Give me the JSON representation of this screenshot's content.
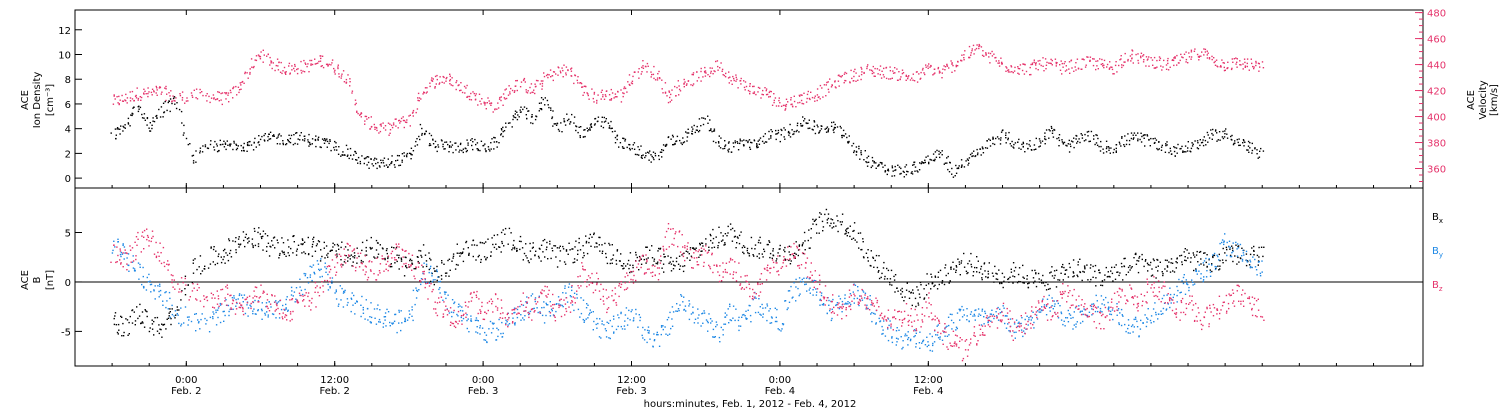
{
  "chart_data": [
    {
      "type": "scatter",
      "panel": "top",
      "ylabel_left": [
        "ACE",
        "Ion Density",
        "[cm⁻³]"
      ],
      "ylabel_right": [
        "ACE",
        "Velocity",
        "[km/s]"
      ],
      "yticks_left": [
        "0",
        "2",
        "4",
        "6",
        "8",
        "10",
        "12"
      ],
      "yticks_right": [
        "360",
        "380",
        "400",
        "420",
        "440",
        "460",
        "480"
      ],
      "ylim_left": [
        -0.8,
        13.6
      ],
      "ylim_right": [
        345,
        482
      ],
      "right_axis_color": "#e5336b",
      "series": [
        {
          "name": "Ion Density",
          "axis": "left",
          "color": "#000000",
          "x": [
            -6,
            -5,
            -4,
            -3,
            -2,
            -1,
            0.5,
            2,
            3,
            4,
            5,
            6,
            7,
            8,
            9,
            10,
            11,
            12,
            13,
            14,
            15,
            16,
            17,
            18,
            19,
            20,
            21,
            22,
            23,
            24,
            25,
            26,
            27,
            28,
            29,
            30,
            31,
            32,
            33,
            34,
            35,
            36,
            37,
            38,
            39,
            40,
            41,
            42,
            43,
            44,
            45,
            46,
            47,
            48,
            49,
            50,
            51,
            52,
            53,
            54,
            55,
            56,
            57,
            58,
            59,
            60,
            61,
            62,
            63,
            64,
            65,
            66,
            67,
            68,
            69,
            70,
            71,
            72,
            73,
            74,
            75,
            76,
            77,
            78,
            79,
            80,
            81,
            82,
            83,
            84,
            85,
            86,
            87
          ],
          "y": [
            3.5,
            4.2,
            5.8,
            4.2,
            5.5,
            6.4,
            1.5,
            2.7,
            2.6,
            2.8,
            2.7,
            3.1,
            3.3,
            3.2,
            3.3,
            3.1,
            2.9,
            2.6,
            2.1,
            1.6,
            1.2,
            1.2,
            1.5,
            1.7,
            4.0,
            2.7,
            2.6,
            2.5,
            2.8,
            2.5,
            2.9,
            4.5,
            5.5,
            4.8,
            6.5,
            4.0,
            5.0,
            3.5,
            4.5,
            4.5,
            3.0,
            2.5,
            2.0,
            1.7,
            3.0,
            3.2,
            4.0,
            4.7,
            3.0,
            2.5,
            3.0,
            2.6,
            3.5,
            3.5,
            4.0,
            4.7,
            4.0,
            4.2,
            3.8,
            2.5,
            1.5,
            1.2,
            0.7,
            0.6,
            1.0,
            1.5,
            2.0,
            0.5,
            1.5,
            2.0,
            3.0,
            3.5,
            2.8,
            2.6,
            3.0,
            4.0,
            2.5,
            3.0,
            3.5,
            2.6,
            2.5,
            3.2,
            3.3,
            3.0,
            2.6,
            2.3,
            2.5,
            3.0,
            3.5,
            3.6,
            3.0,
            2.5,
            1.8
          ]
        },
        {
          "name": "Velocity",
          "axis": "right",
          "color": "#e5336b",
          "x": [
            -6,
            -5,
            -4,
            -3,
            -2,
            -1,
            0.5,
            2,
            3,
            4,
            5,
            6,
            7,
            8,
            9,
            10,
            11,
            12,
            13,
            14,
            15,
            16,
            17,
            18,
            19,
            20,
            21,
            22,
            23,
            24,
            25,
            26,
            27,
            28,
            29,
            30,
            31,
            32,
            33,
            34,
            35,
            36,
            37,
            38,
            39,
            40,
            41,
            42,
            43,
            44,
            45,
            46,
            47,
            48,
            49,
            50,
            51,
            52,
            53,
            54,
            55,
            56,
            57,
            58,
            59,
            60,
            61,
            62,
            63,
            64,
            65,
            66,
            67,
            68,
            69,
            70,
            71,
            72,
            73,
            74,
            75,
            76,
            77,
            78,
            79,
            80,
            81,
            82,
            83,
            84,
            85,
            86,
            87
          ],
          "y": [
            412,
            414,
            418,
            418,
            420,
            414,
            417,
            416,
            414,
            420,
            435,
            449,
            441,
            437,
            438,
            440,
            444,
            438,
            430,
            400,
            394,
            390,
            395,
            398,
            420,
            428,
            430,
            424,
            418,
            412,
            408,
            420,
            426,
            420,
            430,
            435,
            436,
            422,
            415,
            418,
            416,
            430,
            440,
            432,
            415,
            425,
            430,
            434,
            440,
            430,
            425,
            420,
            418,
            410,
            412,
            415,
            418,
            424,
            430,
            432,
            436,
            435,
            434,
            432,
            430,
            438,
            434,
            440,
            448,
            453,
            446,
            440,
            438,
            437,
            441,
            440,
            438,
            440,
            442,
            440,
            438,
            448,
            445,
            443,
            440,
            442,
            446,
            450,
            444,
            440,
            442,
            440,
            438
          ]
        }
      ]
    },
    {
      "type": "scatter",
      "panel": "bottom",
      "ylabel_left": [
        "ACE",
        "B",
        "[nT]"
      ],
      "yticks_left": [
        "-5",
        "0",
        "5"
      ],
      "ylim_left": [
        -8.5,
        9.5
      ],
      "legend": [
        {
          "label": "B",
          "sub": "x",
          "color": "#000000"
        },
        {
          "label": "B",
          "sub": "y",
          "color": "#1e88e5"
        },
        {
          "label": "B",
          "sub": "z",
          "color": "#e5336b"
        }
      ],
      "series": [
        {
          "name": "Bx",
          "color": "#000000",
          "x": [
            -6,
            -5,
            -4,
            -3,
            -2,
            -1,
            0.5,
            2,
            3,
            4,
            5,
            6,
            7,
            8,
            9,
            10,
            11,
            12,
            13,
            14,
            15,
            16,
            17,
            18,
            19,
            20,
            21,
            22,
            23,
            24,
            25,
            26,
            27,
            28,
            29,
            30,
            31,
            32,
            33,
            34,
            35,
            36,
            37,
            38,
            39,
            40,
            41,
            42,
            43,
            44,
            45,
            46,
            47,
            48,
            49,
            50,
            51,
            52,
            53,
            54,
            55,
            56,
            57,
            58,
            59,
            60,
            61,
            62,
            63,
            64,
            65,
            66,
            67,
            68,
            69,
            70,
            71,
            72,
            73,
            74,
            75,
            76,
            77,
            78,
            79,
            80,
            81,
            82,
            83,
            84,
            85,
            86,
            87
          ],
          "y": [
            -4,
            -4.5,
            -3,
            -4,
            -5,
            -3,
            1.5,
            2.5,
            3,
            4,
            4.5,
            4.5,
            3.5,
            3.5,
            3.8,
            3.8,
            3,
            3.5,
            2.5,
            3,
            3.5,
            2.5,
            2.5,
            1.5,
            3,
            0.5,
            1.5,
            3,
            3.5,
            3,
            4,
            4.5,
            3.5,
            3,
            3.5,
            2.5,
            3,
            3.5,
            4,
            3,
            2.5,
            2,
            2.5,
            3,
            1.5,
            2,
            3,
            4,
            4.5,
            5,
            4,
            3.5,
            3.5,
            3,
            3,
            4,
            6,
            6.5,
            6,
            5,
            3,
            1.5,
            0.5,
            -1,
            -1.5,
            0,
            0.5,
            1.5,
            2,
            1.5,
            1,
            0.5,
            1,
            0.5,
            0,
            0.5,
            1,
            1.5,
            1,
            0.5,
            1,
            1.5,
            2,
            1.5,
            1.5,
            2,
            2.5,
            2,
            2,
            2.5,
            3,
            2.5,
            3
          ]
        },
        {
          "name": "By",
          "color": "#1e88e5",
          "x": [
            -6,
            -5,
            -4,
            -3,
            -2,
            -1,
            0.5,
            2,
            3,
            4,
            5,
            6,
            7,
            8,
            9,
            10,
            11,
            12,
            13,
            14,
            15,
            16,
            17,
            18,
            19,
            20,
            21,
            22,
            23,
            24,
            25,
            26,
            27,
            28,
            29,
            30,
            31,
            32,
            33,
            34,
            35,
            36,
            37,
            38,
            39,
            40,
            41,
            42,
            43,
            44,
            45,
            46,
            47,
            48,
            49,
            50,
            51,
            52,
            53,
            54,
            55,
            56,
            57,
            58,
            59,
            60,
            61,
            62,
            63,
            64,
            65,
            66,
            67,
            68,
            69,
            70,
            71,
            72,
            73,
            74,
            75,
            76,
            77,
            78,
            79,
            80,
            81,
            82,
            83,
            84,
            85,
            86,
            87
          ],
          "y": [
            4,
            3,
            1,
            0,
            -1,
            -3,
            -4,
            -4,
            -3,
            -2,
            -2.5,
            -3,
            -3,
            -2,
            -1,
            1,
            1.5,
            -1,
            -2,
            -2.5,
            -3,
            -3.5,
            -4,
            -3.5,
            1,
            1,
            -2,
            -3,
            -4,
            -5,
            -5,
            -4,
            -3,
            -2,
            -3,
            -2,
            -1,
            -3,
            -4,
            -5,
            -4,
            -3,
            -5,
            -6,
            -4,
            -2,
            -3,
            -4,
            -5,
            -3,
            -4,
            -2,
            -3,
            -4,
            -1,
            0,
            -1,
            -3,
            -2,
            -1,
            -2,
            -4,
            -5,
            -6,
            -5.5,
            -6,
            -5,
            -4,
            -3,
            -3.5,
            -4,
            -3,
            -5,
            -4,
            -3,
            -2,
            -4,
            -3.5,
            -3,
            -2,
            -3,
            -4,
            -4.5,
            -3,
            -2,
            -1,
            0,
            1,
            2,
            4,
            3,
            2,
            1
          ]
        },
        {
          "name": "Bz",
          "color": "#e5336b",
          "x": [
            -6,
            -5,
            -4,
            -3,
            -2,
            -1,
            0.5,
            2,
            3,
            4,
            5,
            6,
            7,
            8,
            9,
            10,
            11,
            12,
            13,
            14,
            15,
            16,
            17,
            18,
            19,
            20,
            21,
            22,
            23,
            24,
            25,
            26,
            27,
            28,
            29,
            30,
            31,
            32,
            33,
            34,
            35,
            36,
            37,
            38,
            39,
            40,
            41,
            42,
            43,
            44,
            45,
            46,
            47,
            48,
            49,
            50,
            51,
            52,
            53,
            54,
            55,
            56,
            57,
            58,
            59,
            60,
            61,
            62,
            63,
            64,
            65,
            66,
            67,
            68,
            69,
            70,
            71,
            72,
            73,
            74,
            75,
            76,
            77,
            78,
            79,
            80,
            81,
            82,
            83,
            84,
            85,
            86,
            87
          ],
          "y": [
            3,
            2,
            4,
            4.5,
            3,
            0,
            -1,
            -2,
            -1,
            -3,
            -2,
            -1,
            -2,
            -3,
            -2,
            -2,
            0,
            2,
            3,
            2,
            1,
            2,
            3,
            2,
            1,
            -2,
            -3,
            -4,
            -1,
            -3,
            -2,
            -4,
            -2,
            -3,
            -1,
            -3,
            -2,
            1,
            0,
            -2,
            -1,
            1,
            2,
            1,
            5,
            4,
            2,
            3,
            1,
            2,
            0,
            -1,
            1,
            2,
            3,
            2,
            0,
            -2,
            -3,
            -1,
            -2,
            -3,
            -4,
            -3,
            -4,
            -2,
            -5,
            -6,
            -7,
            -5,
            -4,
            -3,
            -5,
            -4,
            -2,
            -3,
            -1,
            -2,
            -3,
            -4,
            -2,
            -1,
            -2,
            0,
            -1,
            -3,
            -2,
            -4,
            -3,
            -2,
            -1,
            -2,
            -3
          ]
        }
      ]
    }
  ],
  "x_axis": {
    "xlim_hours": [
      -9,
      100
    ],
    "ticks": [
      {
        "hour": 0,
        "time": "0:00",
        "date": "Feb. 2"
      },
      {
        "hour": 12,
        "time": "12:00",
        "date": "Feb. 2"
      },
      {
        "hour": 24,
        "time": "0:00",
        "date": "Feb. 3"
      },
      {
        "hour": 36,
        "time": "12:00",
        "date": "Feb. 3"
      },
      {
        "hour": 48,
        "time": "0:00",
        "date": "Feb. 4"
      },
      {
        "hour": 60,
        "time": "12:00",
        "date": "Feb. 4"
      }
    ],
    "xlabel": "hours:minutes, Feb.  1, 2012 - Feb.  4, 2012"
  }
}
